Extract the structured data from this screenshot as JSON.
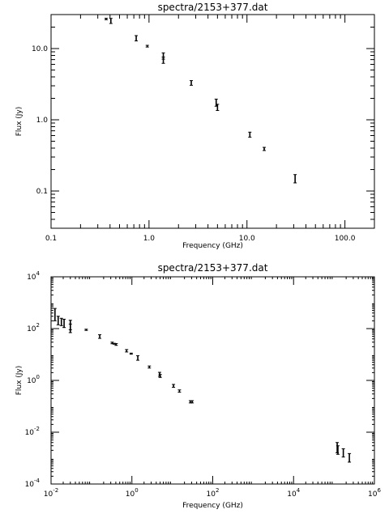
{
  "chart_data": [
    {
      "type": "scatter",
      "title": "spectra/2153+377.dat",
      "xlabel": "Frequency (GHz)",
      "ylabel": "Flux (Jy)",
      "x_scale": "log",
      "y_scale": "log",
      "xlim": [
        0.1,
        200
      ],
      "ylim": [
        0.03,
        30
      ],
      "x_tick_values": [
        0.1,
        1,
        10,
        100
      ],
      "x_tick_labels": [
        "0.1",
        "1.0",
        "10.0",
        "100.0"
      ],
      "y_tick_values": [
        0.1,
        1,
        10
      ],
      "y_tick_labels": [
        "0.1",
        "1.0",
        "10.0"
      ],
      "grid": false,
      "points": [
        {
          "x": 0.365,
          "y": 26.0,
          "err": 0.6
        },
        {
          "x": 0.408,
          "y": 24.5,
          "err": 2.0
        },
        {
          "x": 0.74,
          "y": 14.0,
          "err": 1.2
        },
        {
          "x": 0.96,
          "y": 10.8,
          "err": 0.3
        },
        {
          "x": 1.4,
          "y": 7.9,
          "err": 0.8
        },
        {
          "x": 1.4,
          "y": 6.9,
          "err": 0.7
        },
        {
          "x": 2.7,
          "y": 3.3,
          "err": 0.25
        },
        {
          "x": 4.85,
          "y": 1.75,
          "err": 0.2
        },
        {
          "x": 5.0,
          "y": 1.5,
          "err": 0.15
        },
        {
          "x": 10.7,
          "y": 0.62,
          "err": 0.05
        },
        {
          "x": 15.0,
          "y": 0.39,
          "err": 0.02
        },
        {
          "x": 31.0,
          "y": 0.15,
          "err": 0.02
        }
      ]
    },
    {
      "type": "scatter",
      "title": "spectra/2153+377.dat",
      "xlabel": "Frequency (GHz)",
      "ylabel": "Flux (Jy)",
      "x_scale": "log",
      "y_scale": "log",
      "xlim": [
        0.01,
        1000000
      ],
      "ylim": [
        0.0001,
        10000
      ],
      "x_tick_values": [
        0.01,
        1,
        100,
        10000,
        1000000
      ],
      "x_tick_labels": [
        [
          "10",
          "-2"
        ],
        [
          "10",
          "0"
        ],
        [
          "10",
          "2"
        ],
        [
          "10",
          "4"
        ],
        [
          "10",
          "6"
        ]
      ],
      "y_tick_values": [
        0.0001,
        0.01,
        1,
        100,
        10000
      ],
      "y_tick_labels": [
        [
          "10",
          "-4"
        ],
        [
          "10",
          "-2"
        ],
        [
          "10",
          "0"
        ],
        [
          "10",
          "2"
        ],
        [
          "10",
          "4"
        ]
      ],
      "grid": false,
      "points": [
        {
          "x": 0.0125,
          "y": 400,
          "err": 200
        },
        {
          "x": 0.015,
          "y": 220,
          "err": 80
        },
        {
          "x": 0.018,
          "y": 190,
          "err": 60
        },
        {
          "x": 0.021,
          "y": 170,
          "err": 60
        },
        {
          "x": 0.03,
          "y": 150,
          "err": 60
        },
        {
          "x": 0.03,
          "y": 110,
          "err": 40
        },
        {
          "x": 0.074,
          "y": 90,
          "err": 5
        },
        {
          "x": 0.16,
          "y": 50,
          "err": 8
        },
        {
          "x": 0.325,
          "y": 28,
          "err": 2
        },
        {
          "x": 0.365,
          "y": 26,
          "err": 1
        },
        {
          "x": 0.408,
          "y": 24.5,
          "err": 2
        },
        {
          "x": 0.74,
          "y": 14,
          "err": 1.5
        },
        {
          "x": 0.96,
          "y": 10.8,
          "err": 0.5
        },
        {
          "x": 1.4,
          "y": 7.5,
          "err": 1.5
        },
        {
          "x": 2.7,
          "y": 3.3,
          "err": 0.3
        },
        {
          "x": 4.85,
          "y": 1.75,
          "err": 0.3
        },
        {
          "x": 5.0,
          "y": 1.5,
          "err": 0.2
        },
        {
          "x": 10.7,
          "y": 0.62,
          "err": 0.08
        },
        {
          "x": 15.0,
          "y": 0.39,
          "err": 0.04
        },
        {
          "x": 28.0,
          "y": 0.15,
          "err": 0.015
        },
        {
          "x": 31.0,
          "y": 0.15,
          "err": 0.015
        },
        {
          "x": 120000,
          "y": 0.0028,
          "err": 0.0012
        },
        {
          "x": 125000,
          "y": 0.0022,
          "err": 0.0008
        },
        {
          "x": 170000,
          "y": 0.0017,
          "err": 0.0006
        },
        {
          "x": 240000,
          "y": 0.0011,
          "err": 0.0004
        }
      ]
    }
  ]
}
